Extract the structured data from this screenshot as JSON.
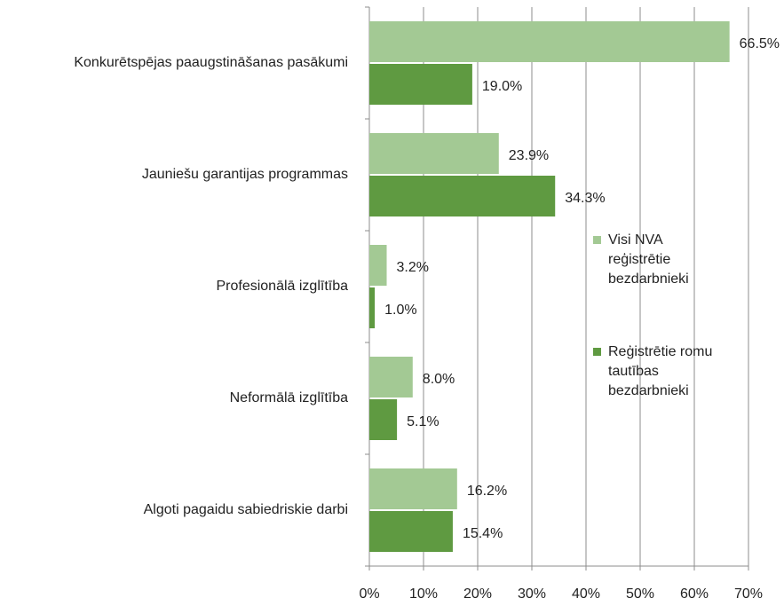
{
  "chart_data": {
    "type": "bar",
    "orientation": "horizontal",
    "categories": [
      "Konkurētspējas paaugstināšanas  pasākumi",
      "Jauniešu garantijas  programmas",
      "Profesionālā izglītība",
      "Neformālā izglītība",
      "Algoti pagaidu sabiedriskie darbi"
    ],
    "series": [
      {
        "name": "Visi NVA reģistrētie bezdarbnieki",
        "color": "#a3c994",
        "values": [
          66.5,
          23.9,
          3.2,
          8.0,
          16.2
        ],
        "value_labels": [
          "66.5%",
          "23.9%",
          "3.2%",
          "8.0%",
          "16.2%"
        ]
      },
      {
        "name": "Reģistrētie romu tautības bezdarbnieki",
        "color": "#5f9a41",
        "values": [
          19.0,
          34.3,
          1.0,
          5.1,
          15.4
        ],
        "value_labels": [
          "19.0%",
          "34.3%",
          "1.0%",
          "5.1%",
          "15.4%"
        ]
      }
    ],
    "xlim": [
      0,
      70
    ],
    "xticks": [
      {
        "value": 0,
        "label": "0%"
      },
      {
        "value": 10,
        "label": "10%"
      },
      {
        "value": 20,
        "label": "20%"
      },
      {
        "value": 30,
        "label": "30%"
      },
      {
        "value": 40,
        "label": "40%"
      },
      {
        "value": 50,
        "label": "50%"
      },
      {
        "value": 60,
        "label": "60%"
      },
      {
        "value": 70,
        "label": "70%"
      }
    ],
    "grid": true,
    "legend": "right"
  }
}
